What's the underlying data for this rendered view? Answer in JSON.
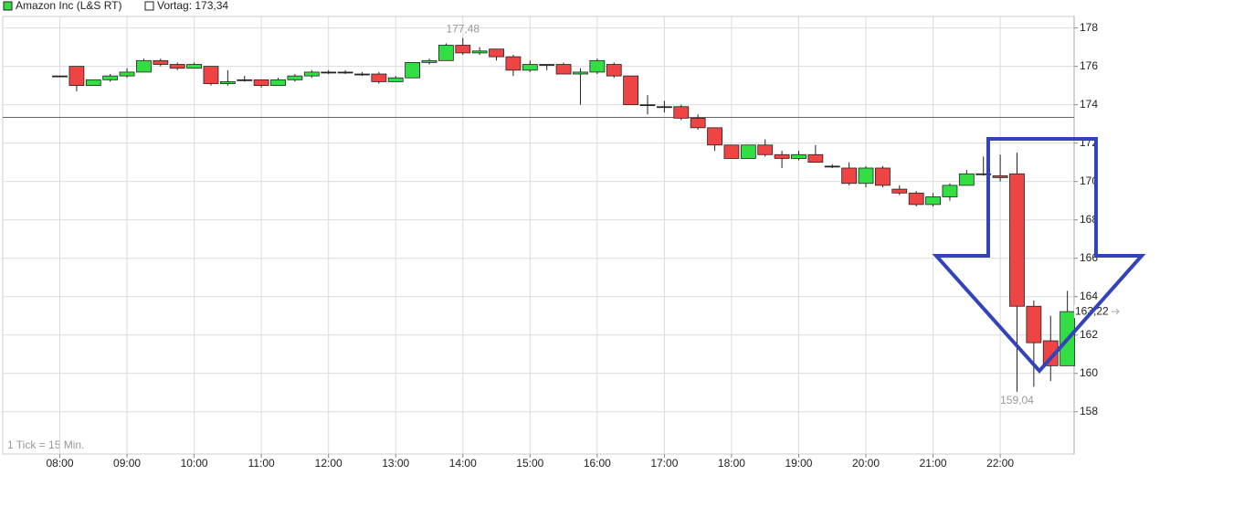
{
  "chart_data": {
    "type": "candlestick",
    "series": [
      {
        "name": "Amazon Inc (L&S RT)",
        "up_color": "#33dd44",
        "down_color": "#ee4444",
        "x": [
          8,
          8.25,
          8.5,
          8.75,
          9,
          9.25,
          9.5,
          9.75,
          10,
          10.25,
          10.5,
          10.75,
          11,
          11.25,
          11.5,
          11.75,
          12,
          12.25,
          12.5,
          12.75,
          13,
          13.25,
          13.5,
          13.75,
          14,
          14.25,
          14.5,
          14.75,
          15,
          15.25,
          15.5,
          15.75,
          16,
          16.25,
          16.5,
          16.75,
          17,
          17.25,
          17.5,
          17.75,
          18,
          18.25,
          18.5,
          18.75,
          19,
          19.25,
          19.5,
          19.75,
          20,
          20.25,
          20.5,
          20.75,
          21,
          21.25,
          21.5,
          21.75,
          22,
          22.25,
          22.5,
          22.75,
          23
        ],
        "open": [
          175.5,
          176.0,
          175.0,
          175.3,
          175.5,
          175.7,
          176.3,
          176.1,
          175.9,
          176.0,
          175.1,
          175.3,
          175.3,
          175.0,
          175.3,
          175.5,
          175.7,
          175.7,
          175.6,
          175.6,
          175.2,
          175.4,
          176.2,
          176.3,
          177.1,
          176.7,
          176.9,
          176.5,
          175.8,
          176.1,
          176.1,
          175.6,
          175.7,
          176.1,
          175.5,
          174.0,
          173.9,
          173.9,
          173.3,
          172.8,
          171.9,
          171.2,
          171.9,
          171.4,
          171.2,
          171.4,
          170.8,
          170.7,
          169.9,
          170.7,
          169.6,
          169.4,
          168.8,
          169.2,
          169.8,
          170.4,
          170.3,
          170.4,
          163.5,
          161.7,
          160.4
        ],
        "high": [
          175.5,
          176.0,
          175.3,
          175.6,
          175.9,
          176.4,
          176.4,
          176.2,
          176.2,
          176.0,
          175.8,
          175.5,
          175.3,
          175.4,
          175.6,
          175.8,
          175.8,
          175.8,
          175.7,
          175.7,
          175.5,
          176.2,
          176.4,
          177.2,
          177.48,
          177.0,
          176.9,
          176.6,
          176.3,
          176.1,
          176.2,
          175.9,
          176.4,
          176.2,
          175.5,
          174.5,
          174.2,
          174.0,
          173.5,
          172.8,
          171.9,
          171.9,
          172.2,
          171.6,
          171.6,
          171.9,
          170.9,
          171.0,
          170.8,
          170.8,
          169.8,
          169.5,
          169.4,
          169.9,
          170.6,
          171.3,
          171.4,
          171.5,
          163.8,
          163.0,
          164.3
        ],
        "low": [
          175.5,
          174.7,
          175.0,
          175.2,
          175.4,
          175.7,
          176.0,
          175.8,
          175.9,
          175.0,
          175.0,
          175.2,
          174.9,
          175.0,
          175.2,
          175.4,
          175.6,
          175.6,
          175.5,
          175.1,
          175.2,
          175.4,
          176.1,
          176.3,
          176.6,
          176.6,
          176.3,
          175.5,
          175.7,
          175.8,
          175.6,
          174.0,
          175.6,
          175.4,
          174.0,
          173.5,
          173.6,
          173.2,
          172.7,
          171.6,
          171.2,
          171.2,
          171.3,
          170.7,
          171.1,
          171.0,
          170.7,
          169.8,
          169.7,
          169.7,
          169.3,
          168.7,
          168.7,
          169.0,
          169.8,
          170.3,
          170.0,
          159.04,
          159.3,
          159.6,
          160.4
        ],
        "close": [
          175.5,
          175.0,
          175.3,
          175.5,
          175.7,
          176.3,
          176.1,
          175.9,
          176.1,
          175.1,
          175.2,
          175.3,
          175.0,
          175.3,
          175.5,
          175.7,
          175.7,
          175.7,
          175.6,
          175.2,
          175.4,
          176.2,
          176.3,
          177.1,
          176.7,
          176.8,
          176.5,
          175.8,
          176.1,
          176.1,
          175.6,
          175.7,
          176.3,
          175.5,
          174.0,
          174.0,
          173.9,
          173.3,
          172.8,
          171.9,
          171.2,
          171.9,
          171.4,
          171.2,
          171.4,
          171.0,
          170.8,
          169.9,
          170.7,
          169.8,
          169.4,
          168.8,
          169.2,
          169.8,
          170.4,
          170.4,
          170.2,
          163.5,
          161.6,
          160.4,
          163.22
        ]
      }
    ],
    "prev_close": {
      "value": 173.34,
      "label": "Vortag: 173,34"
    },
    "high_label": {
      "value": 177.48,
      "label": "177,48"
    },
    "low_label": {
      "value": 159.04,
      "label": "159,04"
    },
    "last_label": {
      "value": 163.22,
      "label": "163,22"
    },
    "footnote": "1 Tick = 15 Min.",
    "xlim": [
      7.15,
      23.1
    ],
    "xticks": [
      {
        "value": 8,
        "label": "08:00"
      },
      {
        "value": 9,
        "label": "09:00"
      },
      {
        "value": 10,
        "label": "10:00"
      },
      {
        "value": 11,
        "label": "11:00"
      },
      {
        "value": 12,
        "label": "12:00"
      },
      {
        "value": 13,
        "label": "13:00"
      },
      {
        "value": 14,
        "label": "14:00"
      },
      {
        "value": 15,
        "label": "15:00"
      },
      {
        "value": 16,
        "label": "16:00"
      },
      {
        "value": 17,
        "label": "17:00"
      },
      {
        "value": 18,
        "label": "18:00"
      },
      {
        "value": 19,
        "label": "19:00"
      },
      {
        "value": 20,
        "label": "20:00"
      },
      {
        "value": 21,
        "label": "21:00"
      },
      {
        "value": 22,
        "label": "22:00"
      }
    ],
    "ylim": [
      155.8,
      178.6
    ],
    "yticks": [
      158,
      160,
      162,
      164,
      166,
      168,
      170,
      172,
      174,
      176,
      178
    ],
    "grid": true
  }
}
